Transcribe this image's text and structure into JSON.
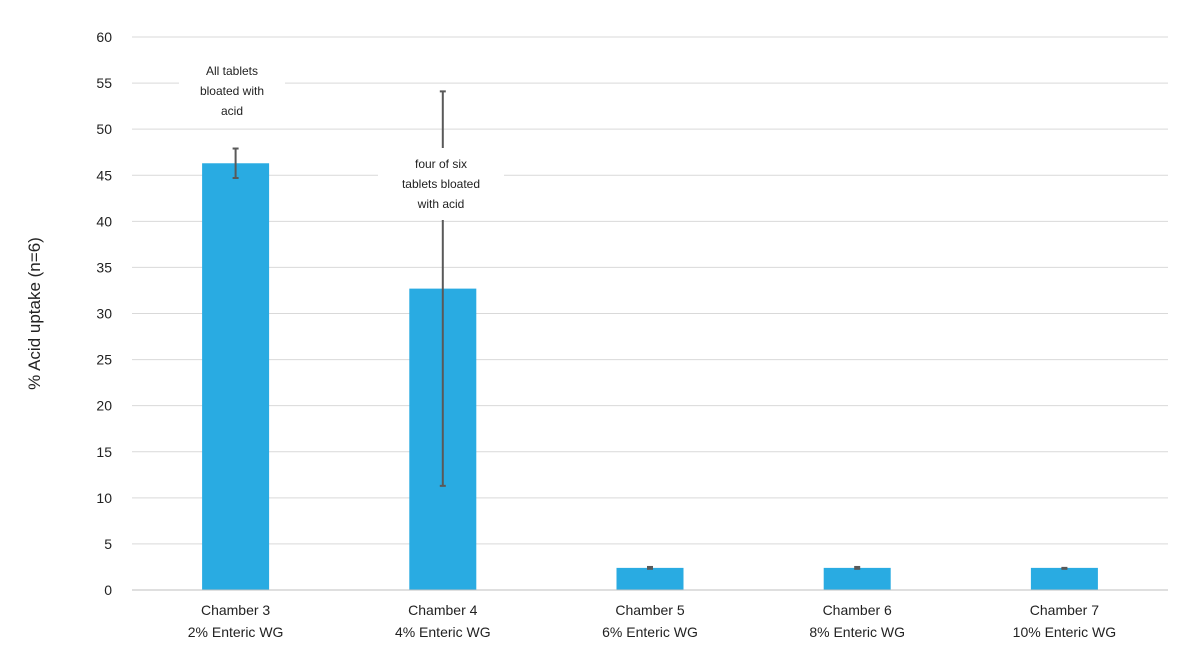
{
  "chart_data": {
    "type": "bar",
    "title": "",
    "xlabel": "",
    "ylabel": "% Acid uptake (n=6)",
    "ylim": [
      0,
      60
    ],
    "yticks": [
      0,
      5,
      10,
      15,
      20,
      25,
      30,
      35,
      40,
      45,
      50,
      55,
      60
    ],
    "grid": true,
    "legend": "none",
    "categories": [
      [
        "Chamber 3",
        "2% Enteric WG"
      ],
      [
        "Chamber 4",
        "4% Enteric WG"
      ],
      [
        "Chamber 5",
        "6% Enteric WG"
      ],
      [
        "Chamber 6",
        "8% Enteric WG"
      ],
      [
        "Chamber 7",
        "10% Enteric WG"
      ]
    ],
    "values": [
      46.3,
      32.7,
      2.4,
      2.4,
      2.4
    ],
    "error_bars": [
      {
        "low": 44.7,
        "high": 47.9
      },
      {
        "low": 11.3,
        "high": 54.1
      },
      {
        "low": 2.3,
        "high": 2.5
      },
      {
        "low": 2.3,
        "high": 2.5
      },
      {
        "low": 2.3,
        "high": 2.4
      }
    ],
    "annotations": [
      {
        "category_index": 0,
        "lines": [
          "All tablets",
          "bloated with",
          "acid"
        ]
      },
      {
        "category_index": 1,
        "lines": [
          "four of six",
          "tablets bloated",
          "with acid"
        ]
      }
    ],
    "colors": {
      "bar": "#29abe2",
      "grid": "#d9d9d9",
      "axis": "#bfbfbf",
      "error_bar": "#595959"
    }
  }
}
